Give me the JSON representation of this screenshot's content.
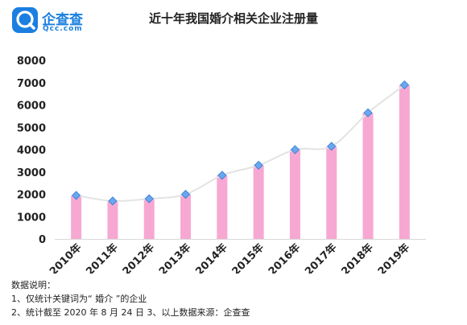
{
  "logo": {
    "name": "企查查",
    "site": "Qcc.com",
    "colors": {
      "primary": "#1a7fe0"
    }
  },
  "chart_data": {
    "type": "bar",
    "title": "近十年我国婚介相关企业注册量",
    "xlabel": "",
    "ylabel": "",
    "categories": [
      "2010年",
      "2011年",
      "2012年",
      "2013年",
      "2014年",
      "2015年",
      "2016年",
      "2017年",
      "2018年",
      "2019年"
    ],
    "values": [
      1950,
      1700,
      1800,
      2000,
      2850,
      3300,
      4000,
      4150,
      5650,
      6900
    ],
    "ylim": [
      0,
      8000
    ],
    "yticks": [
      0,
      1000,
      2000,
      3000,
      4000,
      5000,
      6000,
      7000,
      8000
    ],
    "trend_line": true,
    "grid": false,
    "legend": "none",
    "colors": {
      "bar": "#f7a8d2",
      "trend": "#e3e3e3",
      "marker": "#6aa8ee",
      "marker_edge": "#2f7ad6"
    }
  },
  "notes": {
    "heading": "数据说明：",
    "line1": "1、仅统计关键词为“ 婚介 ”的企业",
    "line2": "2、统计截至 2020 年 8 月 24 日  3、以上数据来源：企查查"
  }
}
